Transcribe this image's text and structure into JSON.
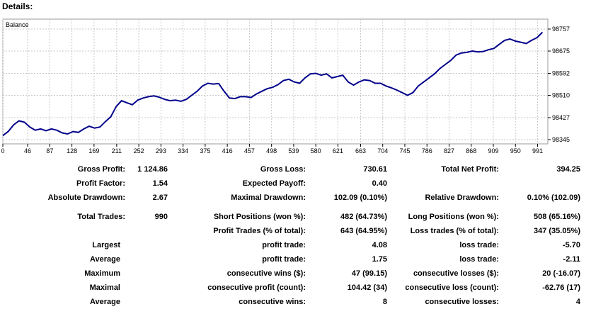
{
  "title": "Details:",
  "chart_data": {
    "type": "line",
    "title": "Balance",
    "xlabel": "",
    "ylabel": "",
    "xlim": [
      0,
      1010
    ],
    "ylim": [
      98345,
      98757
    ],
    "x_ticks": [
      "0",
      "46",
      "87",
      "128",
      "169",
      "211",
      "252",
      "293",
      "334",
      "375",
      "416",
      "457",
      "498",
      "539",
      "580",
      "621",
      "663",
      "704",
      "745",
      "786",
      "827",
      "868",
      "909",
      "950",
      "991"
    ],
    "y_ticks": [
      "98757",
      "98675",
      "98592",
      "98510",
      "98427",
      "98345"
    ],
    "grid": true,
    "line_color": "#00008b",
    "series": [
      {
        "name": "Balance",
        "x": [
          0,
          10,
          20,
          30,
          40,
          50,
          60,
          70,
          80,
          90,
          100,
          110,
          120,
          130,
          140,
          150,
          160,
          170,
          180,
          190,
          200,
          210,
          220,
          230,
          240,
          250,
          260,
          270,
          280,
          290,
          300,
          310,
          320,
          330,
          340,
          350,
          360,
          370,
          380,
          390,
          400,
          410,
          420,
          430,
          440,
          450,
          460,
          470,
          480,
          490,
          500,
          510,
          520,
          530,
          540,
          550,
          560,
          570,
          580,
          590,
          600,
          610,
          620,
          630,
          640,
          650,
          660,
          670,
          680,
          690,
          700,
          710,
          720,
          730,
          740,
          750,
          760,
          770,
          780,
          790,
          800,
          810,
          820,
          830,
          840,
          850,
          860,
          870,
          880,
          890,
          900,
          910,
          920,
          930,
          940,
          950,
          960,
          970,
          980,
          990,
          1000
        ],
        "values": [
          98360,
          98375,
          98400,
          98415,
          98410,
          98392,
          98380,
          98385,
          98378,
          98385,
          98380,
          98370,
          98366,
          98375,
          98372,
          98385,
          98395,
          98388,
          98392,
          98412,
          98430,
          98468,
          98490,
          98482,
          98475,
          98492,
          98500,
          98505,
          98508,
          98503,
          98495,
          98490,
          98492,
          98488,
          98495,
          98510,
          98525,
          98545,
          98555,
          98552,
          98554,
          98525,
          98500,
          98498,
          98505,
          98505,
          98502,
          98515,
          98525,
          98535,
          98540,
          98550,
          98565,
          98570,
          98560,
          98555,
          98575,
          98590,
          98592,
          98585,
          98590,
          98575,
          98580,
          98585,
          98560,
          98548,
          98560,
          98568,
          98565,
          98555,
          98555,
          98545,
          98538,
          98530,
          98520,
          98510,
          98520,
          98545,
          98560,
          98575,
          98590,
          98610,
          98625,
          98640,
          98660,
          98668,
          98670,
          98675,
          98672,
          98673,
          98680,
          98685,
          98700,
          98715,
          98720,
          98712,
          98708,
          98703,
          98715,
          98725,
          98745
        ]
      }
    ]
  },
  "stats": {
    "gross_profit_label": "Gross Profit:",
    "gross_profit": "1 124.86",
    "gross_loss_label": "Gross Loss:",
    "gross_loss": "730.61",
    "total_net_profit_label": "Total Net Profit:",
    "total_net_profit": "394.25",
    "profit_factor_label": "Profit Factor:",
    "profit_factor": "1.54",
    "expected_payoff_label": "Expected Payoff:",
    "expected_payoff": "0.40",
    "absolute_drawdown_label": "Absolute Drawdown:",
    "absolute_drawdown": "2.67",
    "maximal_drawdown_label": "Maximal Drawdown:",
    "maximal_drawdown": "102.09 (0.10%)",
    "relative_drawdown_label": "Relative Drawdown:",
    "relative_drawdown": "0.10% (102.09)",
    "total_trades_label": "Total Trades:",
    "total_trades": "990",
    "short_positions_label": "Short Positions (won %):",
    "short_positions": "482 (64.73%)",
    "long_positions_label": "Long Positions (won %):",
    "long_positions": "508 (65.16%)",
    "profit_trades_label": "Profit Trades (% of total):",
    "profit_trades": "643 (64.95%)",
    "loss_trades_label": "Loss trades (% of total):",
    "loss_trades": "347 (35.05%)",
    "largest_label": "Largest",
    "largest_profit_label": "profit trade:",
    "largest_profit": "4.08",
    "largest_loss_label": "loss trade:",
    "largest_loss": "-5.70",
    "average_label": "Average",
    "average_profit_label": "profit trade:",
    "average_profit": "1.75",
    "average_loss_label": "loss trade:",
    "average_loss": "-2.11",
    "maximum_label": "Maximum",
    "max_cons_wins_label": "consecutive wins ($):",
    "max_cons_wins": "47 (99.15)",
    "max_cons_losses_label": "consecutive losses ($):",
    "max_cons_losses": "20 (-16.07)",
    "maximal_label": "Maximal",
    "maximal_cons_profit_label": "consecutive profit (count):",
    "maximal_cons_profit": "104.42 (34)",
    "maximal_cons_loss_label": "consecutive loss (count):",
    "maximal_cons_loss": "-62.76 (17)",
    "average2_label": "Average",
    "avg_cons_wins_label": "consecutive wins:",
    "avg_cons_wins": "8",
    "avg_cons_losses_label": "consecutive losses:",
    "avg_cons_losses": "4"
  }
}
